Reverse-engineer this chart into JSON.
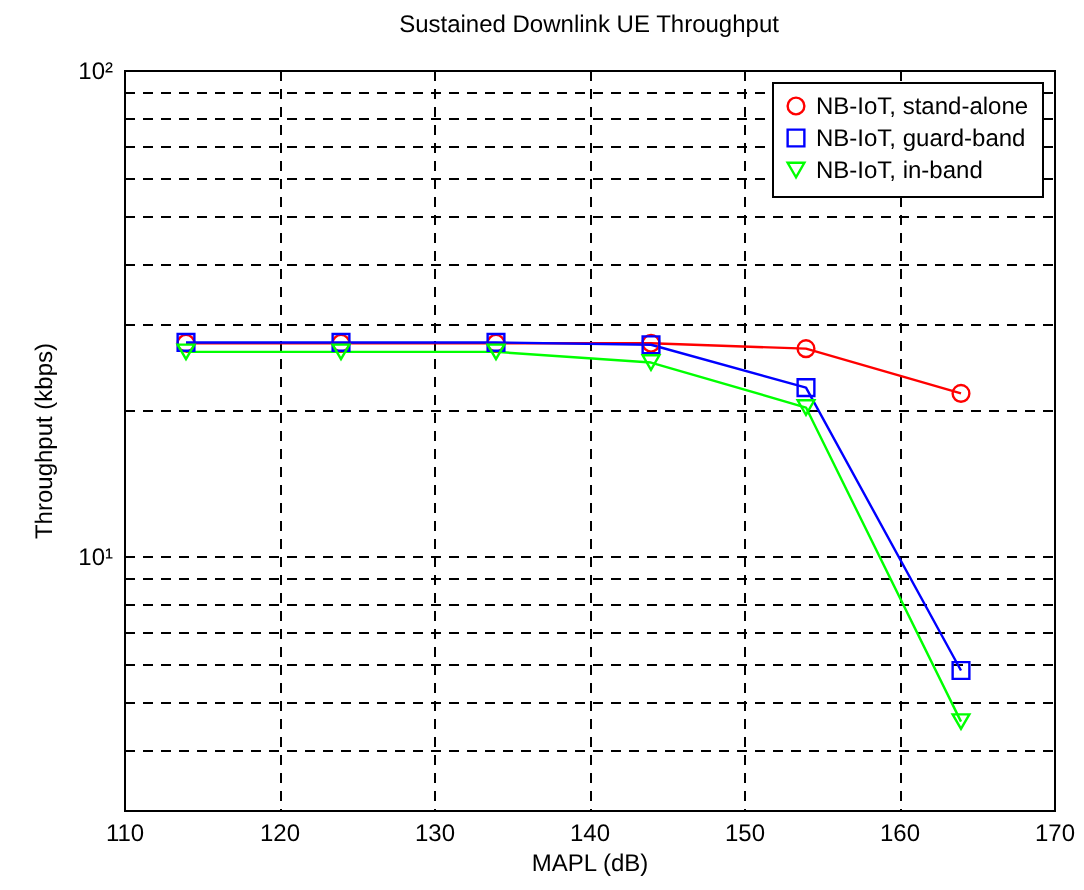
{
  "chart_data": {
    "type": "line",
    "title": "Sustained Downlink UE Throughput",
    "xlabel": "MAPL (dB)",
    "ylabel": "Throughput (kbps)",
    "x": [
      114,
      124,
      134,
      144,
      154,
      164
    ],
    "series": [
      {
        "name": "NB-IoT, stand-alone",
        "color": "#ff0000",
        "marker": "circle",
        "values": [
          27.4,
          27.4,
          27.4,
          27.4,
          26.7,
          21.6
        ]
      },
      {
        "name": "NB-IoT, guard-band",
        "color": "#0000ff",
        "marker": "square",
        "values": [
          27.5,
          27.5,
          27.5,
          27.2,
          22.2,
          5.81
        ]
      },
      {
        "name": "NB-IoT, in-band",
        "color": "#00ff00",
        "marker": "triangle",
        "values": [
          26.3,
          26.3,
          26.3,
          25.0,
          20.2,
          4.56
        ]
      }
    ],
    "log": "y",
    "xlim": [
      110,
      170
    ],
    "xticks": [
      110,
      120,
      130,
      140,
      150,
      160,
      170
    ],
    "ylim": [
      3,
      100
    ],
    "yticks": [
      {
        "value": 3,
        "label": null
      },
      {
        "value": 4,
        "label": null
      },
      {
        "value": 5,
        "label": null
      },
      {
        "value": 6,
        "label": null
      },
      {
        "value": 7,
        "label": null
      },
      {
        "value": 8,
        "label": null
      },
      {
        "value": 9,
        "label": null
      },
      {
        "value": 10,
        "label": "10¹"
      },
      {
        "value": 20,
        "label": null
      },
      {
        "value": 30,
        "label": null
      },
      {
        "value": 40,
        "label": null
      },
      {
        "value": 50,
        "label": null
      },
      {
        "value": 60,
        "label": null
      },
      {
        "value": 70,
        "label": null
      },
      {
        "value": 80,
        "label": null
      },
      {
        "value": 90,
        "label": null
      },
      {
        "value": 100,
        "label": "10²"
      }
    ],
    "grid": true,
    "legend": "top right",
    "line_style": "solid"
  }
}
